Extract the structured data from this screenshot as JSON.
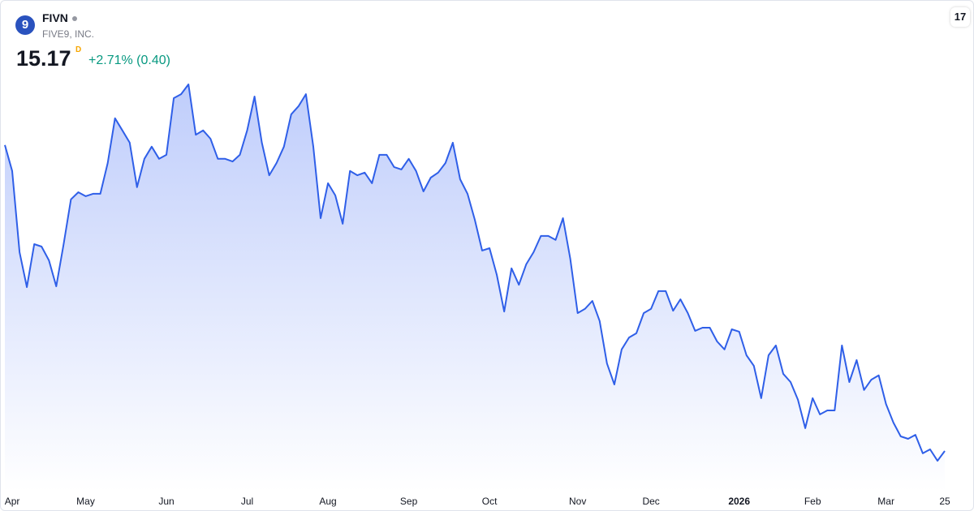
{
  "chart_data": {
    "type": "line",
    "title": "FIVN",
    "subtitle": "FIVE9, INC.",
    "price": 15.17,
    "price_marker": "D",
    "change": "+2.71% (0.40)",
    "color": "#2f5fe8",
    "area": true,
    "ylim": [
      13.64,
      32.15
    ],
    "categories": [
      null,
      "Apr",
      null,
      null,
      null,
      null,
      null,
      null,
      null,
      null,
      null,
      "May",
      null,
      null,
      null,
      null,
      null,
      null,
      null,
      null,
      null,
      null,
      "Jun",
      null,
      null,
      null,
      null,
      null,
      null,
      null,
      null,
      null,
      null,
      "Jul",
      null,
      null,
      null,
      null,
      null,
      null,
      null,
      null,
      null,
      null,
      "Aug",
      null,
      null,
      null,
      null,
      null,
      null,
      null,
      null,
      null,
      null,
      "Sep",
      null,
      null,
      null,
      null,
      null,
      null,
      null,
      null,
      null,
      null,
      "Oct",
      null,
      null,
      null,
      null,
      null,
      null,
      null,
      null,
      null,
      null,
      null,
      "Nov",
      null,
      null,
      null,
      null,
      null,
      null,
      null,
      null,
      null,
      "Dec",
      null,
      null,
      null,
      null,
      null,
      null,
      null,
      null,
      null,
      null,
      null,
      "2026",
      null,
      null,
      null,
      null,
      null,
      null,
      null,
      null,
      null,
      "Feb",
      null,
      null,
      null,
      null,
      null,
      null,
      null,
      null,
      null,
      "Mar",
      null,
      null,
      null,
      null,
      null,
      null,
      null,
      "25"
    ],
    "values": [
      26.71,
      25.73,
      22.67,
      21.35,
      22.97,
      22.88,
      22.36,
      21.38,
      22.97,
      24.66,
      24.93,
      24.78,
      24.87,
      24.87,
      26.03,
      27.72,
      27.26,
      26.8,
      25.12,
      26.19,
      26.65,
      26.19,
      26.34,
      28.48,
      28.63,
      29.0,
      27.1,
      27.26,
      26.95,
      26.19,
      26.19,
      26.09,
      26.34,
      27.26,
      28.54,
      26.8,
      25.57,
      26.03,
      26.65,
      27.87,
      28.18,
      28.63,
      26.65,
      23.95,
      25.27,
      24.81,
      23.74,
      25.73,
      25.57,
      25.67,
      25.27,
      26.34,
      26.34,
      25.88,
      25.79,
      26.19,
      25.73,
      24.96,
      25.48,
      25.67,
      26.03,
      26.8,
      25.42,
      24.87,
      23.89,
      22.73,
      22.82,
      21.81,
      20.43,
      22.06,
      21.44,
      22.21,
      22.67,
      23.28,
      23.28,
      23.13,
      23.95,
      22.42,
      20.37,
      20.53,
      20.83,
      20.07,
      18.47,
      17.68,
      19.0,
      19.45,
      19.61,
      20.37,
      20.53,
      21.2,
      21.2,
      20.46,
      20.89,
      20.37,
      19.7,
      19.82,
      19.82,
      19.3,
      19.0,
      19.76,
      19.67,
      18.78,
      18.38,
      17.16,
      18.78,
      19.15,
      18.08,
      17.77,
      17.1,
      16.03,
      17.16,
      16.55,
      16.7,
      16.7,
      19.15,
      17.77,
      18.6,
      17.47,
      17.86,
      18.02,
      16.94,
      16.24,
      15.72,
      15.63,
      15.78,
      15.08,
      15.23,
      14.8,
      15.17
    ]
  }
}
